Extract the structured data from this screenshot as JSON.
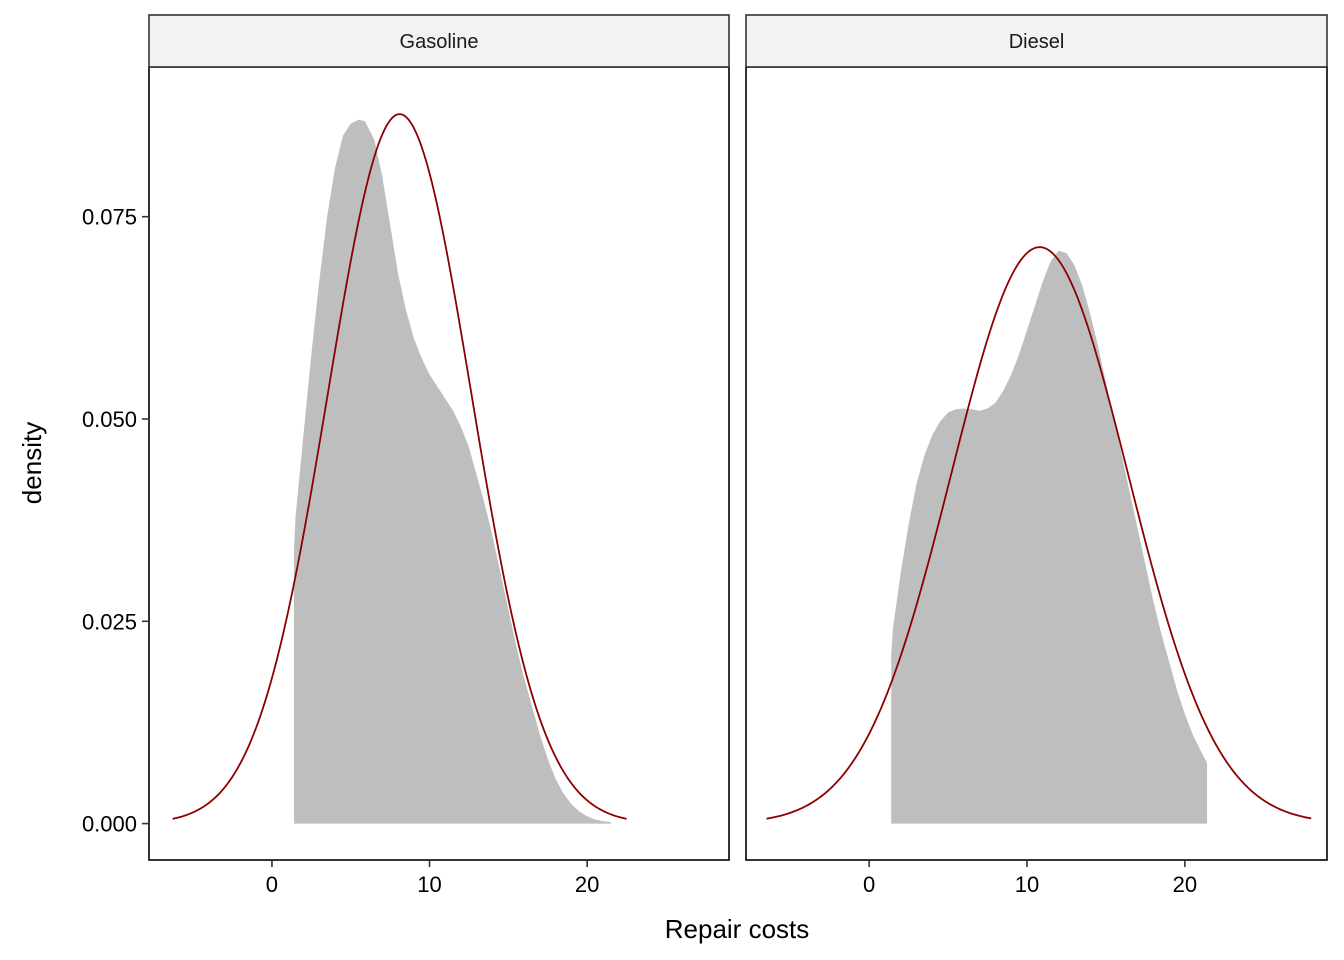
{
  "chart_data": {
    "type": "area",
    "xlabel": "Repair costs",
    "ylabel": "density",
    "xlim": [
      -7.8,
      29
    ],
    "ylim": [
      -0.0045,
      0.0935
    ],
    "x_ticks": [
      0,
      10,
      20
    ],
    "y_ticks": [
      0.0,
      0.025,
      0.05,
      0.075
    ],
    "y_tick_labels": [
      "0.000",
      "0.025",
      "0.050",
      "0.075"
    ],
    "facets": [
      {
        "label": "Gasoline",
        "empirical_density": {
          "fill": "#bebebe",
          "x": [
            1.4,
            1.5,
            2,
            2.5,
            3,
            3.5,
            4,
            4.5,
            5,
            5.5,
            5.9,
            6.5,
            7,
            7.5,
            8,
            8.5,
            9,
            9.5,
            10,
            10.5,
            11,
            11.5,
            12,
            12.5,
            13,
            13.5,
            14,
            14.5,
            15,
            15.5,
            16,
            16.5,
            17,
            17.5,
            18,
            18.5,
            19,
            19.5,
            20,
            20.5,
            21,
            21.5
          ],
          "y": [
            0.034,
            0.038,
            0.048,
            0.058,
            0.067,
            0.075,
            0.081,
            0.085,
            0.0865,
            0.087,
            0.0868,
            0.0845,
            0.08,
            0.074,
            0.068,
            0.0635,
            0.06,
            0.0575,
            0.0555,
            0.054,
            0.0525,
            0.051,
            0.049,
            0.0465,
            0.043,
            0.0395,
            0.0355,
            0.031,
            0.0265,
            0.022,
            0.018,
            0.0145,
            0.011,
            0.008,
            0.0055,
            0.0037,
            0.0024,
            0.0015,
            0.0009,
            0.0005,
            0.0003,
            0.0002
          ]
        },
        "normal_fit": {
          "mean": 8.1,
          "sd": 4.55,
          "x_range": [
            -6.3,
            22.5
          ],
          "color": "#8b0000"
        }
      },
      {
        "label": "Diesel",
        "empirical_density": {
          "fill": "#bebebe",
          "x": [
            1.4,
            1.5,
            2,
            2.5,
            3,
            3.5,
            4,
            4.5,
            5,
            5.5,
            6,
            6.5,
            7,
            7.5,
            8,
            8.5,
            9,
            9.5,
            10,
            10.5,
            11,
            11.5,
            12,
            12.5,
            13,
            13.5,
            14,
            14.5,
            15,
            15.5,
            16,
            16.5,
            17,
            17.5,
            18,
            18.5,
            19,
            19.5,
            20,
            20.5,
            21,
            21.4
          ],
          "y": [
            0.021,
            0.024,
            0.031,
            0.037,
            0.042,
            0.0455,
            0.048,
            0.0497,
            0.0508,
            0.0512,
            0.0513,
            0.0512,
            0.051,
            0.0513,
            0.052,
            0.0535,
            0.0555,
            0.058,
            0.061,
            0.064,
            0.067,
            0.0695,
            0.0708,
            0.0705,
            0.069,
            0.0665,
            0.063,
            0.059,
            0.0545,
            0.05,
            0.0455,
            0.041,
            0.0365,
            0.032,
            0.0275,
            0.0235,
            0.02,
            0.0165,
            0.0135,
            0.011,
            0.009,
            0.0075
          ]
        },
        "normal_fit": {
          "mean": 10.8,
          "sd": 5.6,
          "x_range": [
            -6.5,
            28
          ],
          "color": "#8b0000"
        }
      }
    ]
  }
}
